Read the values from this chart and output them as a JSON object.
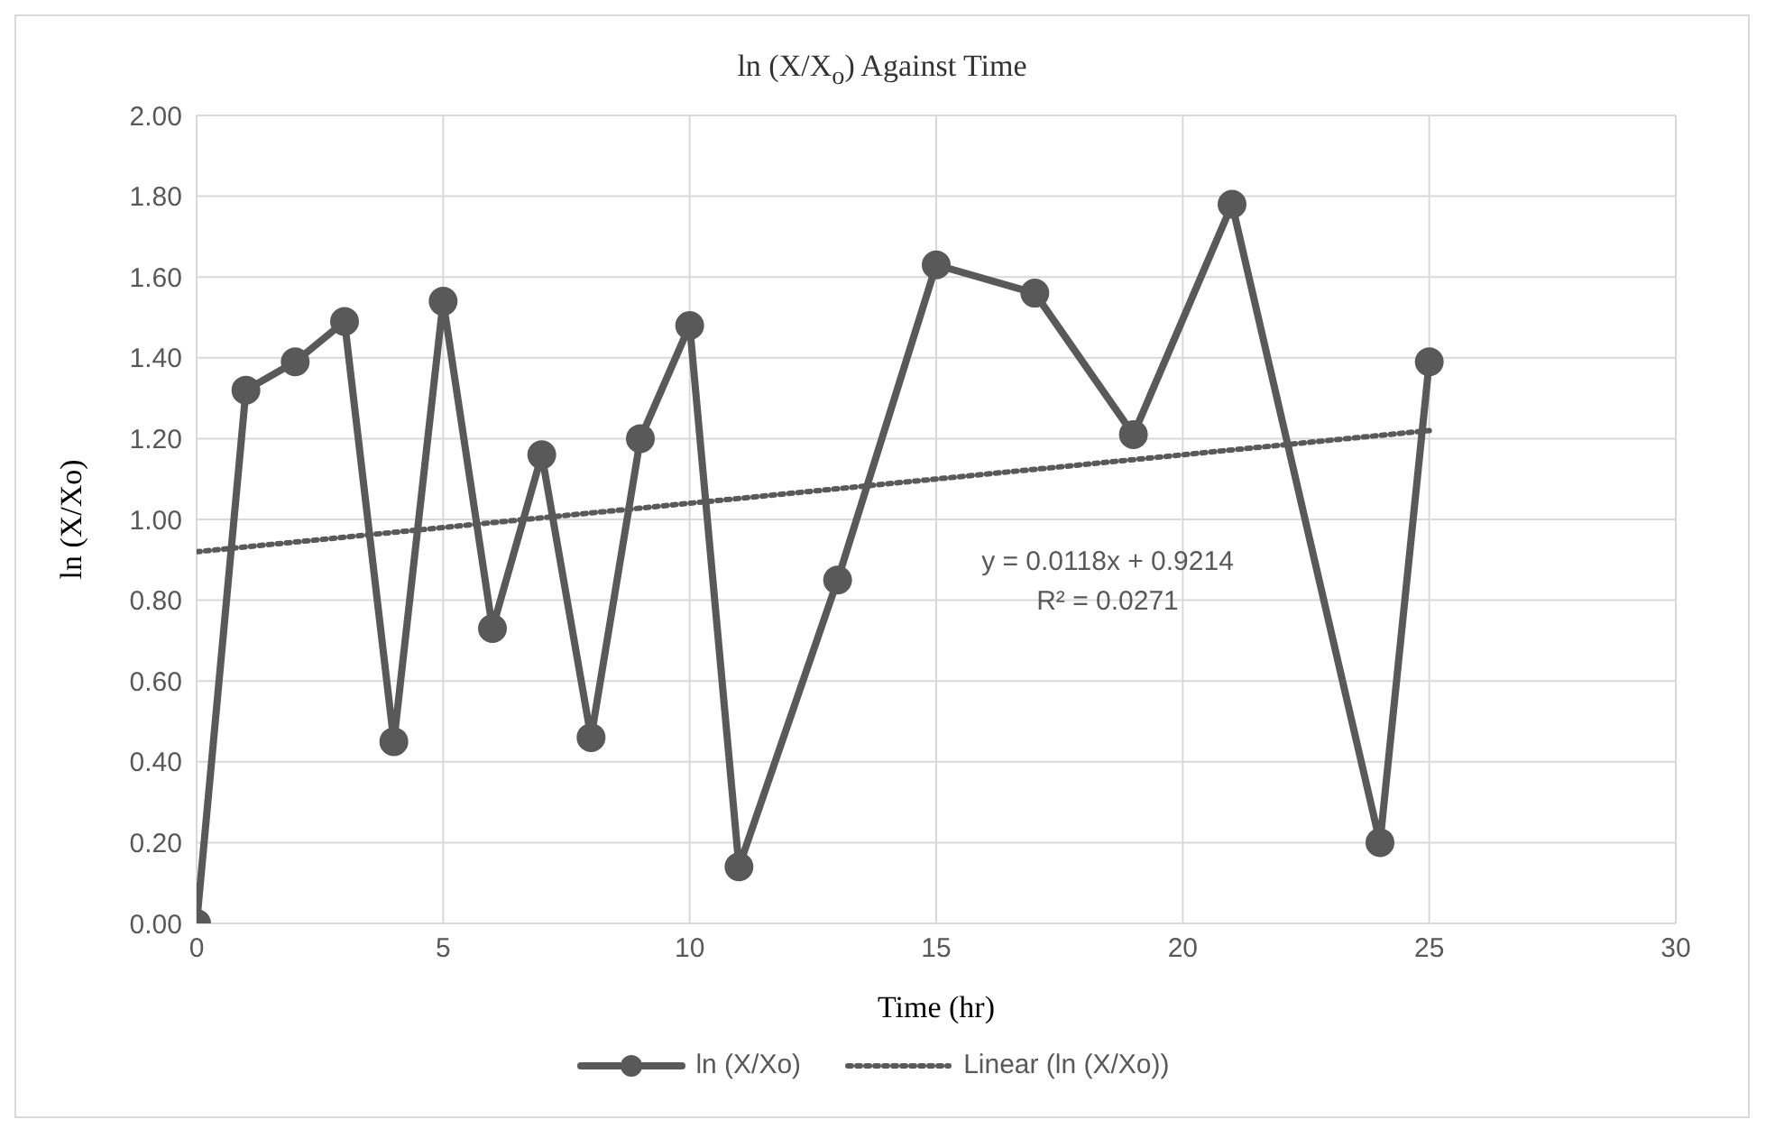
{
  "chart_data": {
    "type": "line",
    "title": "ln (X/X$_{o}$) Against Time",
    "xlabel": "Time (hr)",
    "ylabel": "ln (X/Xo)",
    "x": [
      0,
      1,
      2,
      3,
      4,
      5,
      6,
      7,
      8,
      9,
      10,
      11,
      13,
      15,
      17,
      19,
      21,
      24,
      25
    ],
    "series": [
      {
        "name": "ln (X/Xo)",
        "color": "#595959",
        "values": [
          0,
          1.32,
          1.39,
          1.49,
          0.45,
          1.54,
          0.73,
          1.16,
          0.46,
          1.2,
          1.48,
          0.14,
          0.85,
          1.63,
          1.56,
          1.21,
          1.78,
          0.2,
          1.39
        ],
        "marker": "circle",
        "line_style": "solid"
      },
      {
        "name": "Linear (ln (X/Xo))",
        "color": "#595959",
        "type": "line",
        "x": [
          0,
          25
        ],
        "values": [
          0.92,
          1.22
        ],
        "marker": "none",
        "line_style": "dotted"
      }
    ],
    "annotations": [
      "y = 0.0118x + 0.9214",
      "R² = 0.0271"
    ],
    "xlim": [
      0,
      30
    ],
    "xticks": [
      0,
      5,
      10,
      15,
      20,
      25,
      30
    ],
    "ylim": [
      0,
      2
    ],
    "yticks": [
      {
        "value": 0,
        "label": "0.00"
      },
      {
        "value": 0.2,
        "label": "0.20"
      },
      {
        "value": 0.4,
        "label": "0.40"
      },
      {
        "value": 0.6,
        "label": "0.60"
      },
      {
        "value": 0.8,
        "label": "0.80"
      },
      {
        "value": 1,
        "label": "1.00"
      },
      {
        "value": 1.2,
        "label": "1.20"
      },
      {
        "value": 1.4,
        "label": "1.40"
      },
      {
        "value": 1.6,
        "label": "1.60"
      },
      {
        "value": 1.8,
        "label": "1.80"
      },
      {
        "value": 2,
        "label": "2.00"
      }
    ],
    "grid": true,
    "legend": "bottom"
  }
}
